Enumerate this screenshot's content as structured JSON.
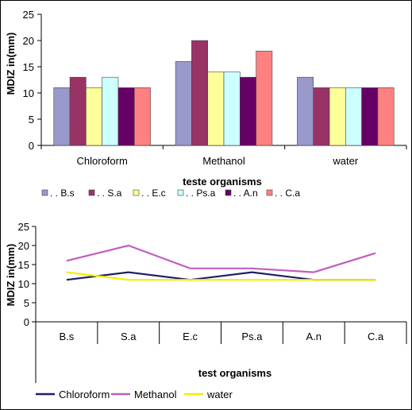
{
  "chart_data": [
    {
      "type": "bar",
      "categories": [
        "Chloroform",
        "Methanol",
        "water"
      ],
      "series": [
        {
          "name": ". . B.s",
          "color": "#9999cc",
          "values": [
            11,
            16,
            13
          ]
        },
        {
          "name": ". . S.a",
          "color": "#993366",
          "values": [
            13,
            20,
            11
          ]
        },
        {
          "name": ". . E.c",
          "color": "#ffff99",
          "values": [
            11,
            14,
            11
          ]
        },
        {
          "name": ". . Ps.a",
          "color": "#ccffff",
          "values": [
            13,
            14,
            11
          ]
        },
        {
          "name": ". . A.n",
          "color": "#660066",
          "values": [
            11,
            13,
            11
          ]
        },
        {
          "name": ". . C.a",
          "color": "#ff8080",
          "values": [
            11,
            18,
            11
          ]
        }
      ],
      "xlabel": "teste organisms",
      "ylabel": "MDIZ in(mm)",
      "ylim": [
        0,
        25
      ],
      "yticks": [
        0,
        5,
        10,
        15,
        20,
        25
      ],
      "legend_position": "bottom",
      "grid": false
    },
    {
      "type": "line",
      "categories": [
        "B.s",
        "S.a",
        "E.c",
        "Ps.a",
        "A.n",
        "C.a"
      ],
      "series": [
        {
          "name": "Chloroform",
          "color": "#1f1f66",
          "values": [
            11,
            13,
            11,
            13,
            11,
            11
          ]
        },
        {
          "name": "Methanol",
          "color": "#bf5fbf",
          "values": [
            16,
            20,
            14,
            14,
            13,
            18
          ]
        },
        {
          "name": "water",
          "color": "#f0f000",
          "values": [
            13,
            11,
            11,
            11,
            11,
            11
          ]
        }
      ],
      "xlabel": "test organisms",
      "ylabel": "MDIZ in(mm)",
      "ylim": [
        0,
        25
      ],
      "yticks": [
        0,
        5,
        10,
        15,
        20,
        25
      ],
      "legend_position": "bottom",
      "grid": false
    }
  ]
}
